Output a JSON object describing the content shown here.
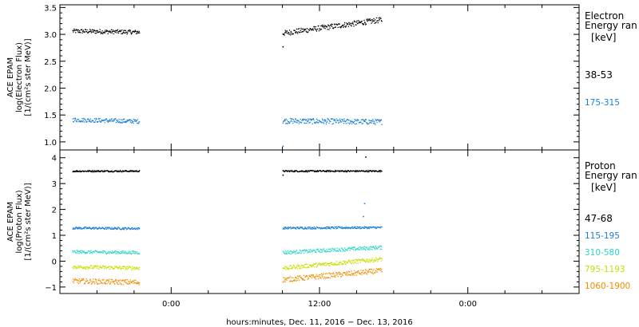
{
  "chart_data": [
    {
      "type": "scatter",
      "ylabel_lines": [
        "ACE EPAM",
        "log(Electron Flux)",
        "[1/(cm²s ster MeV)]"
      ],
      "ylim": [
        0.85,
        3.55
      ],
      "yticks": [
        1.0,
        1.5,
        2.0,
        2.5,
        3.0,
        3.5
      ],
      "ytick_labels": [
        "1.0",
        "1.5",
        "2.0",
        "2.5",
        "3.0",
        "3.5"
      ],
      "legend_title_lines": [
        "Electron",
        "Energy ran",
        "[keV]"
      ],
      "series": [
        {
          "name": "38-53",
          "color": "#000000",
          "segments": [
            {
              "x": [
                -8.0,
                -2.6
              ],
              "y": [
                3.07,
                3.05
              ],
              "noise": 0.04
            },
            {
              "x": [
                9.0,
                17.0
              ],
              "y": [
                3.03,
                3.28
              ],
              "noise": 0.05
            }
          ],
          "outliers": [
            {
              "x": 9.0,
              "y": 2.78
            }
          ]
        },
        {
          "name": "175-315",
          "color": "#1a7fd4",
          "segments": [
            {
              "x": [
                -8.0,
                -2.6
              ],
              "y": [
                1.42,
                1.39
              ],
              "noise": 0.04
            },
            {
              "x": [
                9.0,
                17.0
              ],
              "y": [
                1.4,
                1.38
              ],
              "noise": 0.05
            }
          ],
          "outliers": [
            {
              "x": 9.0,
              "y": 0.93
            }
          ]
        }
      ]
    },
    {
      "type": "scatter",
      "ylabel_lines": [
        "ACE EPAM",
        "log(Proton Flux)",
        "[1/(cm²s ster MeV)]"
      ],
      "ylim": [
        -1.25,
        4.3
      ],
      "yticks": [
        -1,
        0,
        1,
        2,
        3,
        4
      ],
      "ytick_labels": [
        "−1",
        "0",
        "1",
        "2",
        "3",
        "4"
      ],
      "legend_title_lines": [
        "Proton",
        "Energy ran",
        "[keV]"
      ],
      "series": [
        {
          "name": "47-68",
          "color": "#000000",
          "segments": [
            {
              "x": [
                -8.0,
                -2.6
              ],
              "y": [
                3.5,
                3.5
              ],
              "noise": 0.03
            },
            {
              "x": [
                9.0,
                17.0
              ],
              "y": [
                3.5,
                3.5
              ],
              "noise": 0.03
            }
          ],
          "outliers": [
            {
              "x": 9.0,
              "y": 3.35
            },
            {
              "x": 15.7,
              "y": 4.05
            }
          ]
        },
        {
          "name": "115-195",
          "color": "#1a7fd4",
          "segments": [
            {
              "x": [
                -8.0,
                -2.6
              ],
              "y": [
                1.3,
                1.28
              ],
              "noise": 0.04
            },
            {
              "x": [
                9.0,
                17.0
              ],
              "y": [
                1.3,
                1.32
              ],
              "noise": 0.04
            }
          ],
          "outliers": [
            {
              "x": 15.6,
              "y": 2.25
            },
            {
              "x": 15.5,
              "y": 1.75
            }
          ]
        },
        {
          "name": "310-580",
          "color": "#2ed6c8",
          "segments": [
            {
              "x": [
                -8.0,
                -2.6
              ],
              "y": [
                0.38,
                0.35
              ],
              "noise": 0.06
            },
            {
              "x": [
                9.0,
                17.0
              ],
              "y": [
                0.35,
                0.55
              ],
              "noise": 0.07
            }
          ],
          "outliers": []
        },
        {
          "name": "795-1193",
          "color": "#c8e000",
          "segments": [
            {
              "x": [
                -8.0,
                -2.6
              ],
              "y": [
                -0.2,
                -0.25
              ],
              "noise": 0.07
            },
            {
              "x": [
                9.0,
                17.0
              ],
              "y": [
                -0.25,
                0.1
              ],
              "noise": 0.08
            }
          ],
          "outliers": []
        },
        {
          "name": "1060-1900",
          "color": "#f08c00",
          "segments": [
            {
              "x": [
                -8.0,
                -2.6
              ],
              "y": [
                -0.75,
                -0.8
              ],
              "noise": 0.1
            },
            {
              "x": [
                9.0,
                17.0
              ],
              "y": [
                -0.7,
                -0.35
              ],
              "noise": 0.1
            }
          ],
          "outliers": []
        }
      ]
    }
  ],
  "xaxis": {
    "xlim": [
      -9.0,
      33.0
    ],
    "major_ticks": [
      0,
      12,
      24
    ],
    "major_labels": [
      "0:00",
      "12:00",
      "0:00"
    ],
    "minor_ticks": [
      -6,
      -3,
      3,
      6,
      9,
      15,
      18,
      21,
      27,
      30
    ],
    "xlabel": "hours:minutes, Dec. 11, 2016 − Dec. 13, 2016"
  }
}
